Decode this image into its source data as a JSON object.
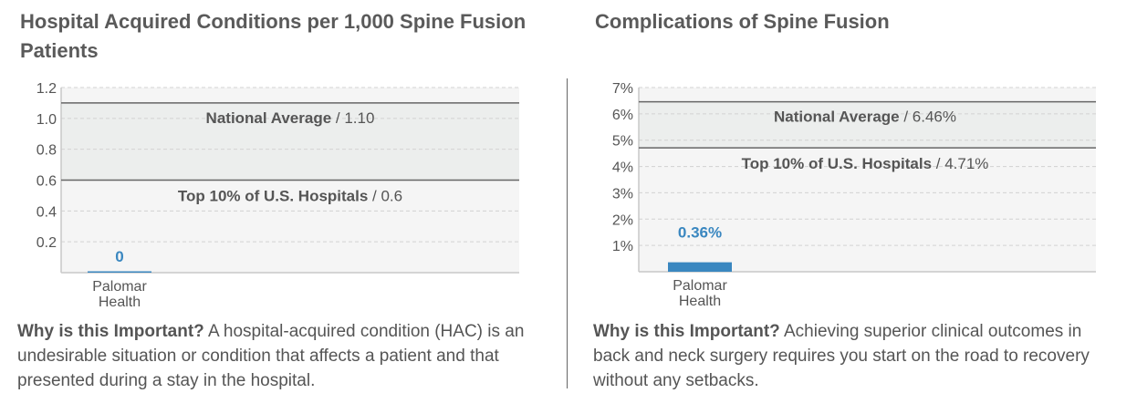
{
  "colors": {
    "bar": "#3a87c0",
    "label": "#3a87c0",
    "text": "#555555",
    "band": "#eceeed",
    "plot_bg": "#f5f5f5",
    "axis": "#c8c8c8"
  },
  "left": {
    "title": "Hospital Acquired Conditions per 1,000 Spine Fusion Patients",
    "why_heading": "Why is this Important?",
    "why_text": " A hospital-acquired condition (HAC) is an undesirable situation or condition that affects a patient and that presented during a stay in the hospital."
  },
  "right": {
    "title": "Complications of Spine Fusion",
    "why_heading": "Why is this Important?",
    "why_text": " Achieving superior clinical outcomes in back and neck surgery requires you start on the road to recovery without any setbacks."
  },
  "chart_data": [
    {
      "type": "bar",
      "title": "Hospital Acquired Conditions per 1,000 Spine Fusion Patients",
      "categories": [
        "Palomar Health"
      ],
      "category_lines": [
        "Palomar",
        "Health"
      ],
      "values": [
        0
      ],
      "value_labels": [
        "0"
      ],
      "yticks": [
        0.2,
        0.4,
        0.6,
        0.8,
        1.0,
        1.2
      ],
      "ytick_labels": [
        "0.2",
        "0.4",
        "0.6",
        "0.8",
        "1.0",
        "1.2"
      ],
      "ylim": [
        0,
        1.2
      ],
      "grid": true,
      "reference_lines": [
        {
          "label": "National Average",
          "value_label": "1.10",
          "value": 1.1
        },
        {
          "label": "Top 10% of U.S. Hospitals",
          "value_label": "0.6",
          "value": 0.6
        }
      ]
    },
    {
      "type": "bar",
      "title": "Complications of Spine Fusion",
      "categories": [
        "Palomar Health"
      ],
      "category_lines": [
        "Palomar",
        "Health"
      ],
      "values": [
        0.36
      ],
      "value_labels": [
        "0.36%"
      ],
      "yticks": [
        1,
        2,
        3,
        4,
        5,
        6,
        7
      ],
      "ytick_labels": [
        "1%",
        "2%",
        "3%",
        "4%",
        "5%",
        "6%",
        "7%"
      ],
      "ylim": [
        0,
        7
      ],
      "grid": true,
      "reference_lines": [
        {
          "label": "National Average",
          "value_label": "6.46%",
          "value": 6.46
        },
        {
          "label": "Top 10% of U.S. Hospitals",
          "value_label": "4.71%",
          "value": 4.71
        }
      ]
    }
  ]
}
